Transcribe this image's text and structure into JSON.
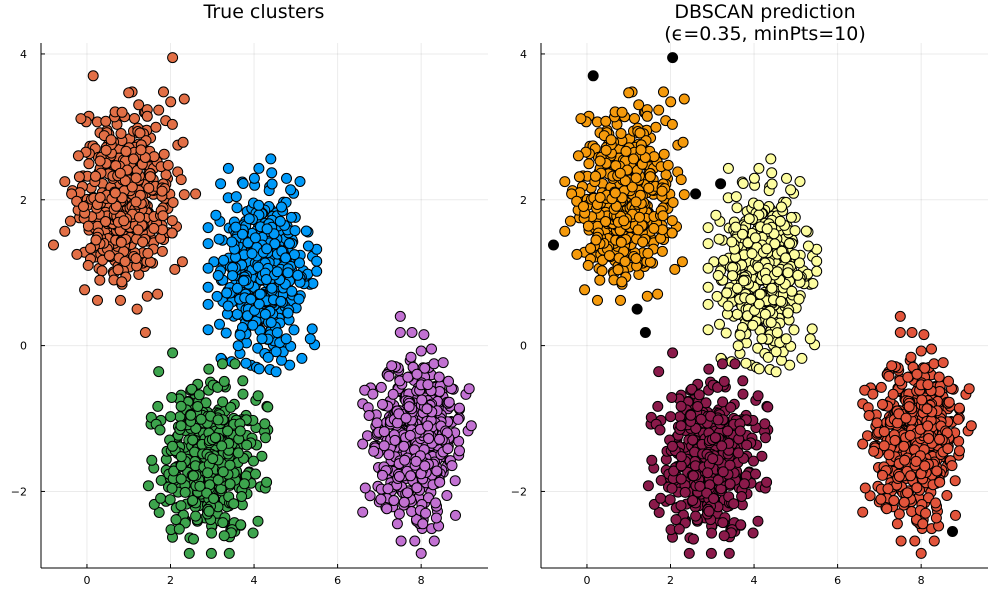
{
  "chart_data": [
    {
      "type": "scatter",
      "title": "True clusters",
      "xticks": [
        0,
        2,
        4,
        6,
        8
      ],
      "yticks": [
        4,
        2,
        0,
        -2
      ],
      "xlim": [
        -1.1,
        9.6
      ],
      "ylim": [
        -3.05,
        4.15
      ],
      "grid": true,
      "legend": "none",
      "series": [
        {
          "color": "#e26f46",
          "center": [
            0.9,
            2.05
          ],
          "spread": [
            0.55,
            0.55
          ],
          "count": 520,
          "extra": [
            [
              2.05,
              3.95
            ],
            [
              0.15,
              3.7
            ],
            [
              -0.8,
              1.38
            ],
            [
              1.4,
              0.18
            ],
            [
              1.2,
              0.5
            ],
            [
              2.6,
              2.08
            ]
          ]
        },
        {
          "color": "#009af9",
          "center": [
            4.2,
            1.0
          ],
          "spread": [
            0.5,
            0.55
          ],
          "count": 520,
          "extra": [
            [
              4.4,
              2.56
            ],
            [
              3.2,
              2.22
            ],
            [
              5.1,
              2.25
            ]
          ]
        },
        {
          "color": "#3da44d",
          "center": [
            2.9,
            -1.55
          ],
          "spread": [
            0.55,
            0.5
          ],
          "count": 520,
          "extra": [
            [
              2.05,
              -0.1
            ],
            [
              2.45,
              -2.85
            ]
          ]
        },
        {
          "color": "#c271d2",
          "center": [
            7.9,
            -1.25
          ],
          "spread": [
            0.5,
            0.55
          ],
          "count": 520,
          "extra": [
            [
              7.5,
              0.4
            ],
            [
              8.0,
              -2.85
            ]
          ]
        }
      ]
    },
    {
      "type": "scatter",
      "title": "DBSCAN prediction",
      "subtitle": "(ϵ=0.35, minPts=10)",
      "xticks": [
        0,
        2,
        4,
        6,
        8
      ],
      "yticks": [
        4,
        2,
        0,
        -2
      ],
      "xlim": [
        -1.1,
        9.6
      ],
      "ylim": [
        -3.05,
        4.15
      ],
      "grid": true,
      "legend": "none",
      "series": [
        {
          "color": "#f59a0c",
          "center": [
            0.9,
            2.05
          ],
          "spread": [
            0.55,
            0.55
          ],
          "count": 520,
          "extra": []
        },
        {
          "color": "#fdfda0",
          "center": [
            4.2,
            1.0
          ],
          "spread": [
            0.5,
            0.55
          ],
          "count": 520,
          "extra": [
            [
              4.4,
              2.56
            ],
            [
              5.1,
              2.25
            ]
          ]
        },
        {
          "color": "#8a1a4a",
          "center": [
            2.9,
            -1.55
          ],
          "spread": [
            0.55,
            0.5
          ],
          "count": 520,
          "extra": [
            [
              2.05,
              -0.1
            ],
            [
              2.45,
              -2.85
            ]
          ]
        },
        {
          "color": "#e2543b",
          "center": [
            7.9,
            -1.25
          ],
          "spread": [
            0.5,
            0.55
          ],
          "count": 520,
          "extra": [
            [
              7.5,
              0.4
            ],
            [
              8.0,
              -2.85
            ]
          ]
        },
        {
          "color": "#000000",
          "center": [
            0,
            0
          ],
          "spread": [
            0,
            0
          ],
          "count": 0,
          "noise": true,
          "extra": [
            [
              2.05,
              3.95
            ],
            [
              0.15,
              3.7
            ],
            [
              -0.8,
              1.38
            ],
            [
              1.4,
              0.18
            ],
            [
              1.2,
              0.5
            ],
            [
              2.6,
              2.08
            ],
            [
              3.2,
              2.22
            ],
            [
              8.75,
              -2.55
            ]
          ]
        }
      ]
    }
  ]
}
